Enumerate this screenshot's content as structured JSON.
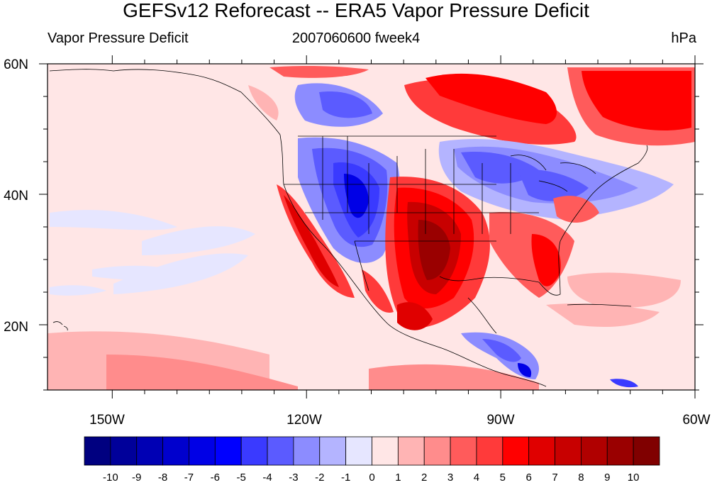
{
  "title": "GEFSv12 Reforecast -- ERA5 Vapor Pressure Deficit",
  "subtitle_left": "Vapor Pressure Deficit",
  "subtitle_center": "2007060600 fweek4",
  "subtitle_right": "hPa",
  "map": {
    "lon_range": [
      -160,
      -60
    ],
    "lat_range": [
      10,
      60
    ],
    "lon_ticks": [
      "150W",
      "120W",
      "90W",
      "60W"
    ],
    "lat_ticks": [
      "60N",
      "40N",
      "20N"
    ]
  },
  "colorbar": {
    "labels": [
      "-10",
      "-9",
      "-8",
      "-7",
      "-6",
      "-5",
      "-4",
      "-3",
      "-2",
      "-1",
      "0",
      "1",
      "2",
      "3",
      "4",
      "5",
      "6",
      "7",
      "8",
      "9",
      "10"
    ],
    "colors": [
      "#000080",
      "#00009a",
      "#0000b4",
      "#0000cd",
      "#0000e6",
      "#0000ff",
      "#3a3aff",
      "#5b5bff",
      "#8c8cff",
      "#b4b4ff",
      "#e6e6ff",
      "#ffe6e6",
      "#ffb4b4",
      "#ff8c8c",
      "#ff5b5b",
      "#ff3a3a",
      "#ff0000",
      "#e00000",
      "#c80000",
      "#b00000",
      "#9a0000",
      "#800000"
    ]
  }
}
